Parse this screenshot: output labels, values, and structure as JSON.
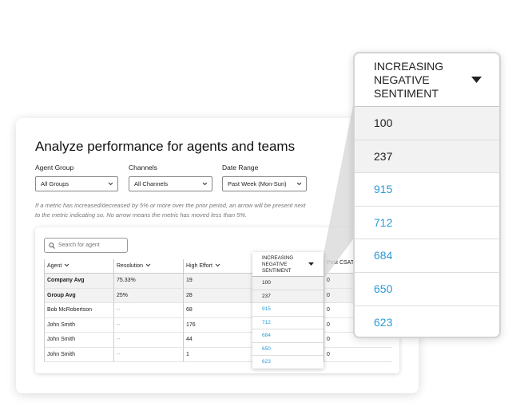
{
  "title": "Analyze performance for agents and teams",
  "filters": [
    {
      "label": "Agent Group",
      "value": "All Groups"
    },
    {
      "label": "Channels",
      "value": "All Channels"
    },
    {
      "label": "Date Range",
      "value": "Past Week (Mon-Sun)"
    }
  ],
  "note": "If a metric has increased/decreased by 5% or more over the prior period, an arrow will be present next to the metric indicating so. No arrow means the metric has moved less than 5%.",
  "search_placeholder": "Search for agent",
  "table": {
    "headers": [
      "Agent",
      "Resolution",
      "High Effort",
      "Post CSAT Negative C"
    ],
    "rows": [
      [
        "Company Avg",
        "75.33%",
        "19",
        "0"
      ],
      [
        "Group Avg",
        "25%",
        "28",
        "0"
      ],
      [
        "Bob McRobertson",
        "--",
        "68",
        "0"
      ],
      [
        "John Smith",
        "--",
        "176",
        "0"
      ],
      [
        "John Smith",
        "--",
        "44",
        "0"
      ],
      [
        "John Smith",
        "--",
        "1",
        "0"
      ]
    ]
  },
  "sentiment_column": {
    "header": "INCREASING NEGATIVE SENTIMENT",
    "values": [
      "100",
      "237",
      "915",
      "712",
      "684",
      "650",
      "623"
    ]
  }
}
